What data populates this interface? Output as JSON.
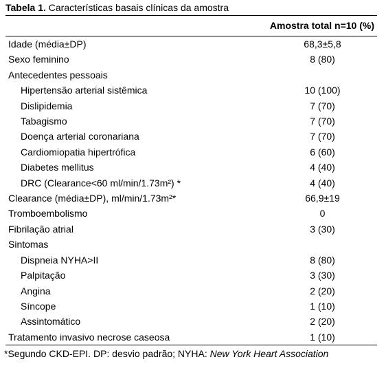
{
  "title": {
    "label": "Tabela 1.",
    "text": "Características basais clínicas da amostra"
  },
  "table": {
    "header": "Amostra total n=10 (%)",
    "rows": [
      {
        "label": "Idade (média±DP)",
        "value": "68,3±5,8"
      },
      {
        "label": "Sexo feminino",
        "value": "8 (80)"
      },
      {
        "label": "Antecedentes pessoais",
        "items": [
          {
            "label": "Hipertensão arterial sistêmica",
            "value": "10 (100)"
          },
          {
            "label": "Dislipidemia",
            "value": "7 (70)"
          },
          {
            "label": "Tabagismo",
            "value": "7 (70)"
          },
          {
            "label": "Doença arterial coronariana",
            "value": "7 (70)"
          },
          {
            "label": "Cardiomiopatia hipertrófica",
            "value": "6 (60)"
          },
          {
            "label": "Diabetes mellitus",
            "value": "4 (40)"
          },
          {
            "label": "DRC (Clearance<60 ml/min/1.73m²) *",
            "value": "4 (40)"
          }
        ]
      },
      {
        "label": "Clearance (média±DP), ml/min/1.73m²*",
        "value": "66,9±19"
      },
      {
        "label": "Tromboembolismo",
        "value": "0"
      },
      {
        "label": "Fibrilação atrial",
        "value": "3 (30)"
      },
      {
        "label": "Sintomas",
        "items": [
          {
            "label": "Dispneia NYHA>II",
            "value": "8 (80)"
          },
          {
            "label": "Palpitação",
            "value": "3 (30)"
          },
          {
            "label": "Angina",
            "value": "2 (20)"
          },
          {
            "label": "Síncope",
            "value": "1 (10)"
          },
          {
            "label": "Assintomático",
            "value": "2 (20)"
          }
        ]
      },
      {
        "label": "Tratamento invasivo necrose caseosa",
        "value": "1 (10)"
      }
    ]
  },
  "footnote": {
    "text": "*Segundo CKD-EPI. DP: desvio padrão; NYHA: ",
    "italic": "New York Heart Association"
  }
}
